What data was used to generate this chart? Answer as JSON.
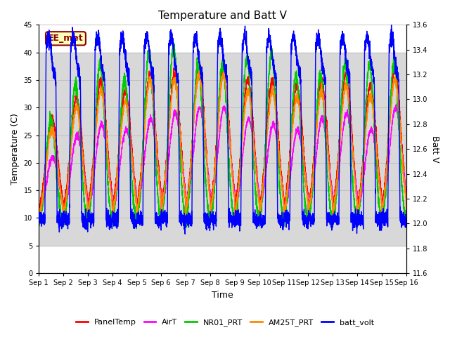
{
  "title": "Temperature and Batt V",
  "xlabel": "Time",
  "ylabel_left": "Temperature (C)",
  "ylabel_right": "Batt V",
  "annotation": "EE_met",
  "xlim_days": [
    0,
    15
  ],
  "ylim_left": [
    0,
    45
  ],
  "ylim_right": [
    11.6,
    13.6
  ],
  "x_ticks_labels": [
    "Sep 1",
    "Sep 2",
    "Sep 3",
    "Sep 4",
    "Sep 5",
    "Sep 6",
    "Sep 7",
    "Sep 8",
    "Sep 9",
    "Sep 10",
    "Sep 11",
    "Sep 12",
    "Sep 13",
    "Sep 14",
    "Sep 15",
    "Sep 16"
  ],
  "y_ticks_left": [
    0,
    5,
    10,
    15,
    20,
    25,
    30,
    35,
    40,
    45
  ],
  "y_ticks_right": [
    11.6,
    11.8,
    12.0,
    12.2,
    12.4,
    12.6,
    12.8,
    13.0,
    13.2,
    13.4,
    13.6
  ],
  "legend_entries": [
    "PanelTemp",
    "AirT",
    "NR01_PRT",
    "AM25T_PRT",
    "batt_volt"
  ],
  "legend_colors": [
    "#ff0000",
    "#ff00ff",
    "#00cc00",
    "#ff8800",
    "#0000ff"
  ],
  "shaded_ymin": 5,
  "shaded_ymax": 40,
  "shaded_color": "#d8d8d8",
  "bg_color": "#ffffff",
  "grid_color": "#bbbbbb"
}
